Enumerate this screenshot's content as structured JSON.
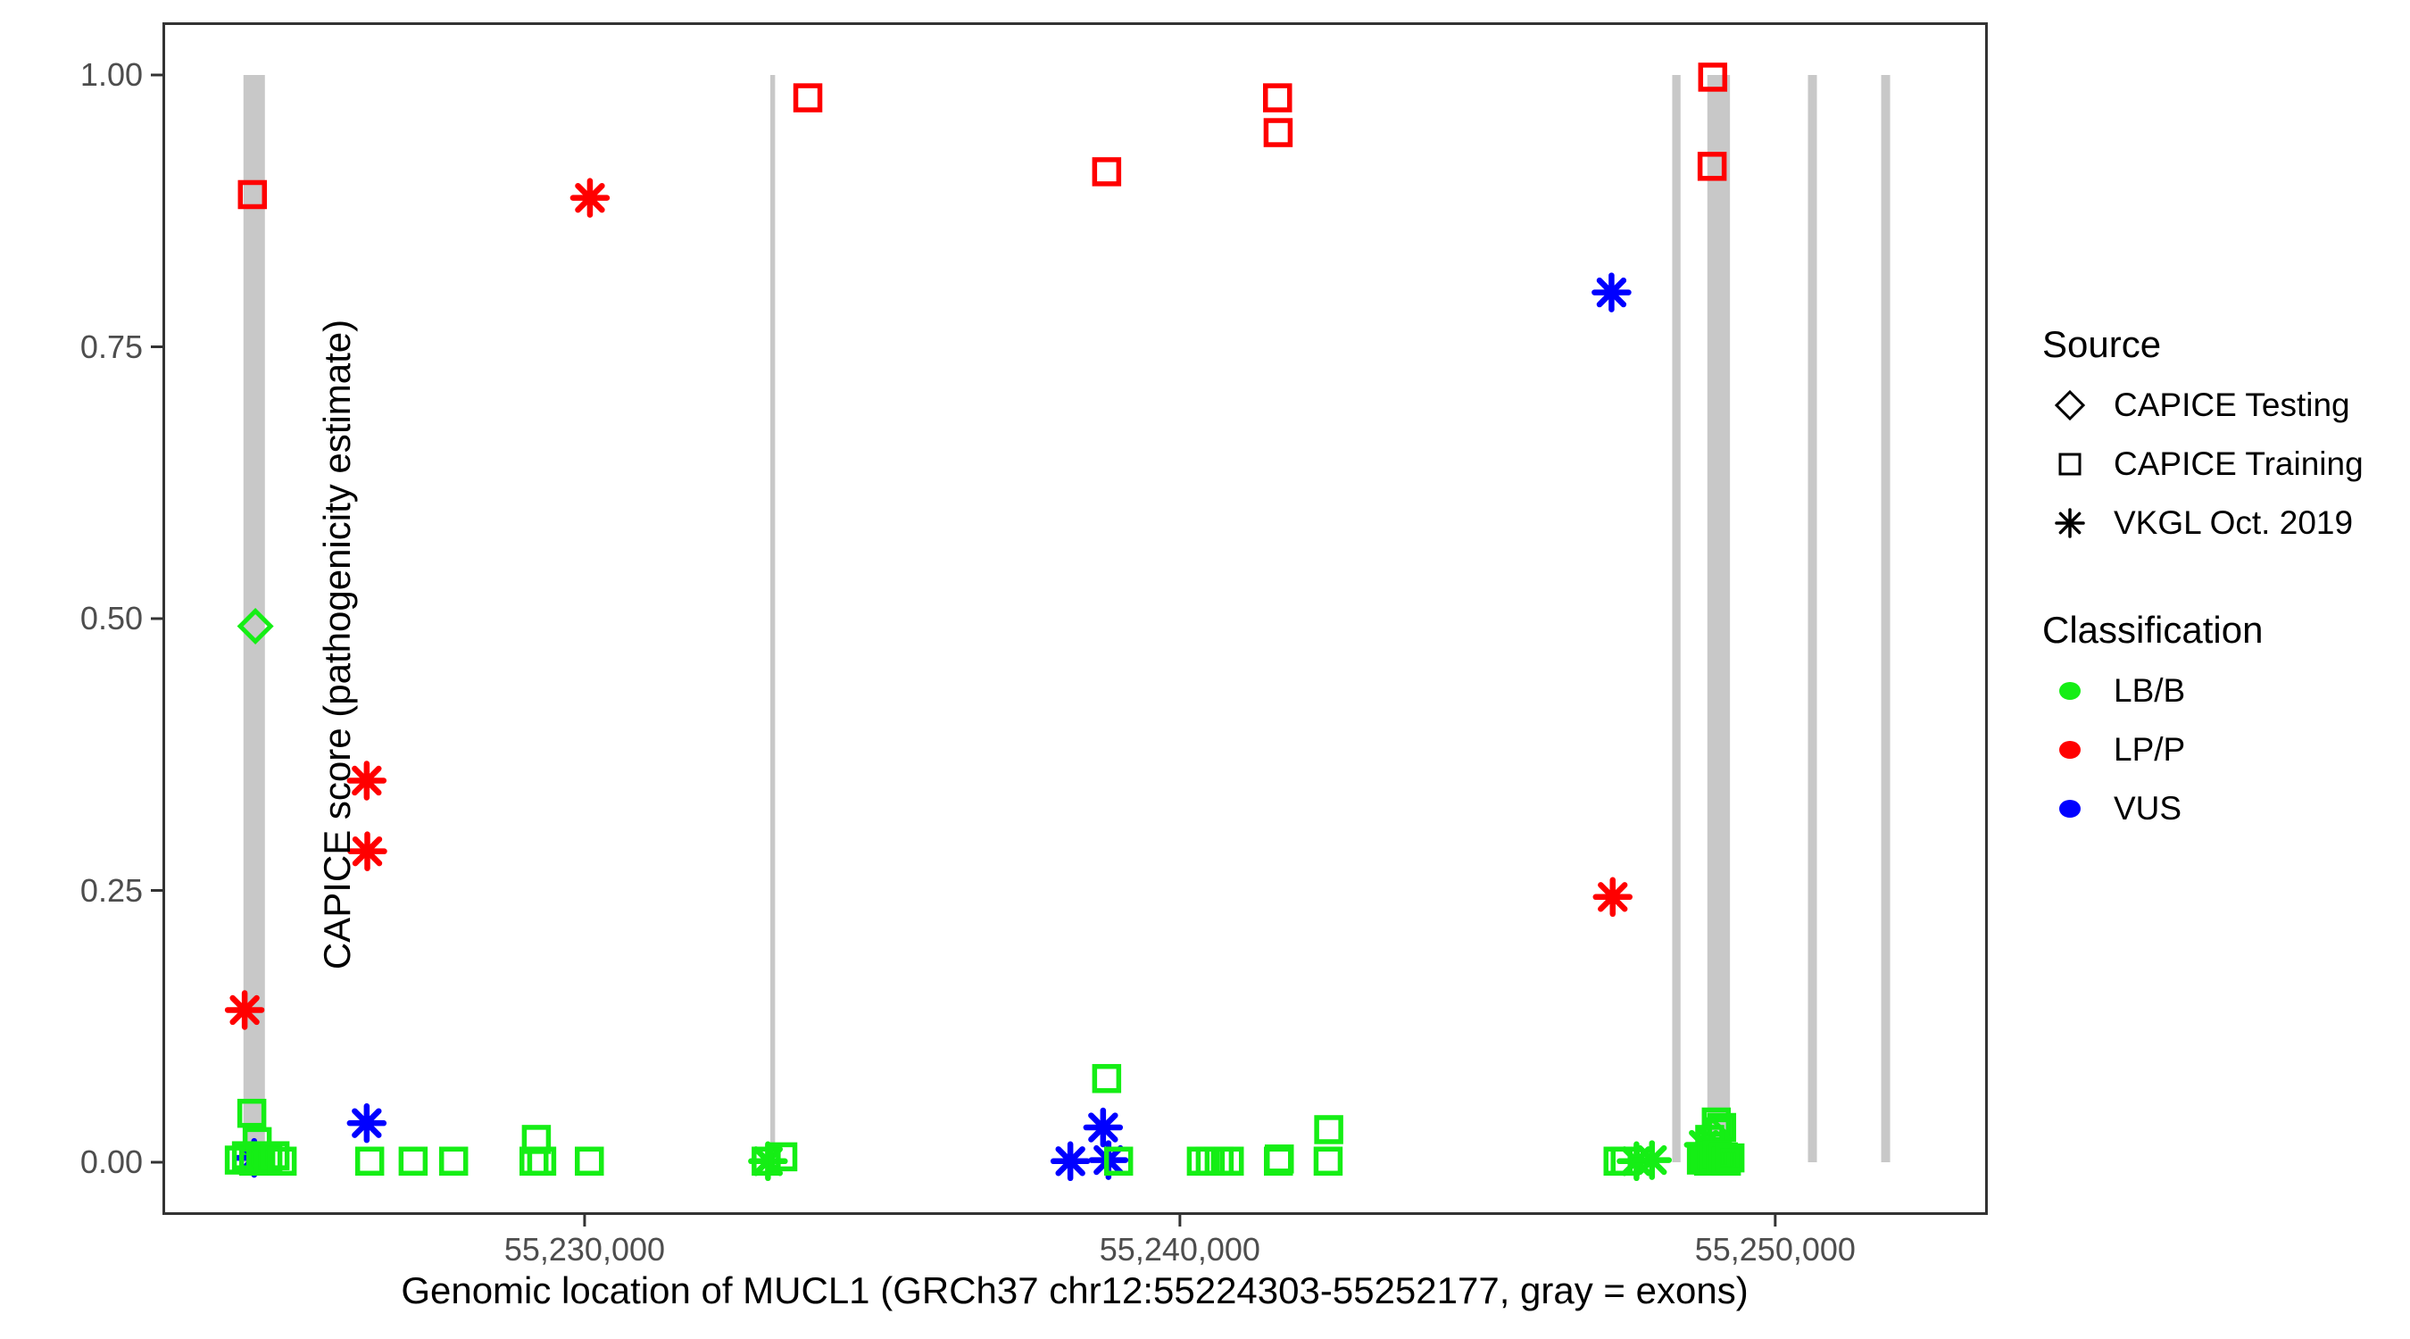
{
  "axes": {
    "x_title": "Genomic location of MUCL1 (GRCh37 chr12:55224303-55252177, gray = exons)",
    "y_title": "CAPICE score (pathogenicity estimate)",
    "y_ticks": [
      {
        "label": "0.00",
        "value": 0.0
      },
      {
        "label": "0.25",
        "value": 0.25
      },
      {
        "label": "0.50",
        "value": 0.5
      },
      {
        "label": "0.75",
        "value": 0.75
      },
      {
        "label": "1.00",
        "value": 1.0
      }
    ],
    "x_ticks": [
      {
        "label": "55,230,000",
        "value": 55230000
      },
      {
        "label": "55,240,000",
        "value": 55240000
      },
      {
        "label": "55,250,000",
        "value": 55250000
      }
    ]
  },
  "legend": {
    "source": {
      "title": "Source",
      "items": [
        {
          "label": "CAPICE Testing",
          "marker": "diamond"
        },
        {
          "label": "CAPICE Training",
          "marker": "square"
        },
        {
          "label": "VKGL Oct. 2019",
          "marker": "asterisk"
        }
      ]
    },
    "classification": {
      "title": "Classification",
      "items": [
        {
          "label": "LB/B",
          "color": "#15EE15"
        },
        {
          "label": "LP/P",
          "color": "#FF0000"
        },
        {
          "label": "VUS",
          "color": "#0000FF"
        }
      ]
    }
  },
  "colors": {
    "lbb_green": "#15EE15",
    "lpp_red": "#FF0000",
    "vus_blue": "#0000FF",
    "exon_gray": "#C8C8C8",
    "axis": "#333333",
    "tick_text": "#4d4d4d"
  },
  "chart_data": {
    "type": "scatter",
    "title": "",
    "xlabel": "Genomic location of MUCL1 (GRCh37 chr12:55224303-55252177, gray = exons)",
    "ylabel": "CAPICE score (pathogenicity estimate)",
    "x_domain": [
      55222909,
      55253571
    ],
    "y_domain": [
      -0.05,
      1.05
    ],
    "grid": false,
    "legend_position": "right",
    "exons_note": "gray vertical bars = exons, spanning score 0 to 1",
    "exons": [
      {
        "start": 55224270,
        "end": 55224630
      },
      {
        "start": 55233120,
        "end": 55233200
      },
      {
        "start": 55248270,
        "end": 55248410
      },
      {
        "start": 55248860,
        "end": 55249240
      },
      {
        "start": 55250550,
        "end": 55250700
      },
      {
        "start": 55251780,
        "end": 55251930
      }
    ],
    "points": [
      {
        "bp": 55224290,
        "score": 0.14,
        "classification": "LP/P",
        "source": "VKGL Oct. 2019"
      },
      {
        "bp": 55224420,
        "score": 0.89,
        "classification": "LP/P",
        "source": "CAPICE Training"
      },
      {
        "bp": 55224470,
        "score": 0.493,
        "classification": "LB/B",
        "source": "CAPICE Testing"
      },
      {
        "bp": 55224410,
        "score": 0.045,
        "classification": "LB/B",
        "source": "CAPICE Training"
      },
      {
        "bp": 55224500,
        "score": 0.019,
        "classification": "LB/B",
        "source": "CAPICE Training"
      },
      {
        "bp": 55224450,
        "score": 0.004,
        "classification": "VUS",
        "source": "VKGL Oct. 2019"
      },
      {
        "bp": 55224200,
        "score": 0.002,
        "classification": "LB/B",
        "source": "CAPICE Training"
      },
      {
        "bp": 55224320,
        "score": 0.006,
        "classification": "LB/B",
        "source": "CAPICE Training"
      },
      {
        "bp": 55224440,
        "score": 0.001,
        "classification": "LB/B",
        "source": "CAPICE Training"
      },
      {
        "bp": 55224560,
        "score": 0.005,
        "classification": "LB/B",
        "source": "CAPICE Training"
      },
      {
        "bp": 55224680,
        "score": 0.002,
        "classification": "LB/B",
        "source": "CAPICE Training"
      },
      {
        "bp": 55224800,
        "score": 0.006,
        "classification": "LB/B",
        "source": "CAPICE Training"
      },
      {
        "bp": 55224920,
        "score": 0.001,
        "classification": "LB/B",
        "source": "CAPICE Training"
      },
      {
        "bp": 55226340,
        "score": 0.351,
        "classification": "LP/P",
        "source": "VKGL Oct. 2019"
      },
      {
        "bp": 55226350,
        "score": 0.286,
        "classification": "LP/P",
        "source": "VKGL Oct. 2019"
      },
      {
        "bp": 55226340,
        "score": 0.036,
        "classification": "VUS",
        "source": "VKGL Oct. 2019"
      },
      {
        "bp": 55226390,
        "score": 0.001,
        "classification": "LB/B",
        "source": "CAPICE Training"
      },
      {
        "bp": 55227120,
        "score": 0.001,
        "classification": "LB/B",
        "source": "CAPICE Training"
      },
      {
        "bp": 55227800,
        "score": 0.001,
        "classification": "LB/B",
        "source": "CAPICE Training"
      },
      {
        "bp": 55229190,
        "score": 0.021,
        "classification": "LB/B",
        "source": "CAPICE Training"
      },
      {
        "bp": 55229150,
        "score": 0.001,
        "classification": "LB/B",
        "source": "CAPICE Training"
      },
      {
        "bp": 55229280,
        "score": 0.001,
        "classification": "LB/B",
        "source": "CAPICE Training"
      },
      {
        "bp": 55230080,
        "score": 0.001,
        "classification": "LB/B",
        "source": "CAPICE Training"
      },
      {
        "bp": 55230090,
        "score": 0.887,
        "classification": "LP/P",
        "source": "VKGL Oct. 2019"
      },
      {
        "bp": 55233050,
        "score": 0.001,
        "classification": "LB/B",
        "source": "CAPICE Training"
      },
      {
        "bp": 55233080,
        "score": 0.001,
        "classification": "LB/B",
        "source": "VKGL Oct. 2019"
      },
      {
        "bp": 55233330,
        "score": 0.005,
        "classification": "LB/B",
        "source": "CAPICE Training"
      },
      {
        "bp": 55233750,
        "score": 0.979,
        "classification": "LP/P",
        "source": "CAPICE Training"
      },
      {
        "bp": 55238160,
        "score": 0.001,
        "classification": "VUS",
        "source": "VKGL Oct. 2019"
      },
      {
        "bp": 55238710,
        "score": 0.032,
        "classification": "VUS",
        "source": "VKGL Oct. 2019"
      },
      {
        "bp": 55238770,
        "score": 0.077,
        "classification": "LB/B",
        "source": "CAPICE Training"
      },
      {
        "bp": 55238770,
        "score": 0.911,
        "classification": "LP/P",
        "source": "CAPICE Training"
      },
      {
        "bp": 55238800,
        "score": 0.002,
        "classification": "VUS",
        "source": "VKGL Oct. 2019"
      },
      {
        "bp": 55238970,
        "score": 0.001,
        "classification": "LB/B",
        "source": "CAPICE Training"
      },
      {
        "bp": 55240360,
        "score": 0.001,
        "classification": "LB/B",
        "source": "CAPICE Training"
      },
      {
        "bp": 55240510,
        "score": 0.001,
        "classification": "LB/B",
        "source": "CAPICE Training"
      },
      {
        "bp": 55240660,
        "score": 0.001,
        "classification": "LB/B",
        "source": "CAPICE Training"
      },
      {
        "bp": 55240830,
        "score": 0.001,
        "classification": "LB/B",
        "source": "CAPICE Training"
      },
      {
        "bp": 55241640,
        "score": 0.979,
        "classification": "LP/P",
        "source": "CAPICE Training"
      },
      {
        "bp": 55241650,
        "score": 0.947,
        "classification": "LP/P",
        "source": "CAPICE Training"
      },
      {
        "bp": 55241655,
        "score": 0.001,
        "classification": "LB/B",
        "source": "CAPICE Training"
      },
      {
        "bp": 55241670,
        "score": 0.003,
        "classification": "LB/B",
        "source": "CAPICE Training"
      },
      {
        "bp": 55242490,
        "score": 0.001,
        "classification": "LB/B",
        "source": "CAPICE Training"
      },
      {
        "bp": 55242500,
        "score": 0.03,
        "classification": "LB/B",
        "source": "CAPICE Training"
      },
      {
        "bp": 55247250,
        "score": 0.8,
        "classification": "VUS",
        "source": "VKGL Oct. 2019"
      },
      {
        "bp": 55247270,
        "score": 0.244,
        "classification": "LP/P",
        "source": "VKGL Oct. 2019"
      },
      {
        "bp": 55247360,
        "score": 0.001,
        "classification": "LB/B",
        "source": "CAPICE Training"
      },
      {
        "bp": 55247480,
        "score": 0.001,
        "classification": "LB/B",
        "source": "CAPICE Training"
      },
      {
        "bp": 55247670,
        "score": 0.001,
        "classification": "LB/B",
        "source": "VKGL Oct. 2019"
      },
      {
        "bp": 55247930,
        "score": 0.002,
        "classification": "LB/B",
        "source": "VKGL Oct. 2019"
      },
      {
        "bp": 55248950,
        "score": 0.998,
        "classification": "LP/P",
        "source": "CAPICE Training"
      },
      {
        "bp": 55248940,
        "score": 0.916,
        "classification": "LP/P",
        "source": "CAPICE Training"
      },
      {
        "bp": 55249010,
        "score": 0.037,
        "classification": "LB/B",
        "source": "CAPICE Training"
      },
      {
        "bp": 55249100,
        "score": 0.032,
        "classification": "LB/B",
        "source": "CAPICE Training"
      },
      {
        "bp": 55249020,
        "score": 0.028,
        "classification": "LB/B",
        "source": "CAPICE Training"
      },
      {
        "bp": 55248950,
        "score": 0.025,
        "classification": "LB/B",
        "source": "CAPICE Testing"
      },
      {
        "bp": 55248900,
        "score": 0.021,
        "classification": "LB/B",
        "source": "CAPICE Training"
      },
      {
        "bp": 55248800,
        "score": 0.016,
        "classification": "LB/B",
        "source": "VKGL Oct. 2019"
      },
      {
        "bp": 55248760,
        "score": 0.002,
        "classification": "LB/B",
        "source": "CAPICE Training"
      },
      {
        "bp": 55248820,
        "score": 0.005,
        "classification": "LB/B",
        "source": "CAPICE Training"
      },
      {
        "bp": 55248880,
        "score": 0.001,
        "classification": "LB/B",
        "source": "CAPICE Training"
      },
      {
        "bp": 55248930,
        "score": 0.006,
        "classification": "LB/B",
        "source": "CAPICE Training"
      },
      {
        "bp": 55248980,
        "score": 0.003,
        "classification": "LB/B",
        "source": "CAPICE Training"
      },
      {
        "bp": 55249030,
        "score": 0.007,
        "classification": "LB/B",
        "source": "CAPICE Training"
      },
      {
        "bp": 55249080,
        "score": 0.002,
        "classification": "LB/B",
        "source": "CAPICE Training"
      },
      {
        "bp": 55249130,
        "score": 0.005,
        "classification": "LB/B",
        "source": "CAPICE Training"
      },
      {
        "bp": 55249180,
        "score": 0.001,
        "classification": "LB/B",
        "source": "CAPICE Training"
      },
      {
        "bp": 55249240,
        "score": 0.004,
        "classification": "LB/B",
        "source": "CAPICE Training"
      }
    ]
  }
}
